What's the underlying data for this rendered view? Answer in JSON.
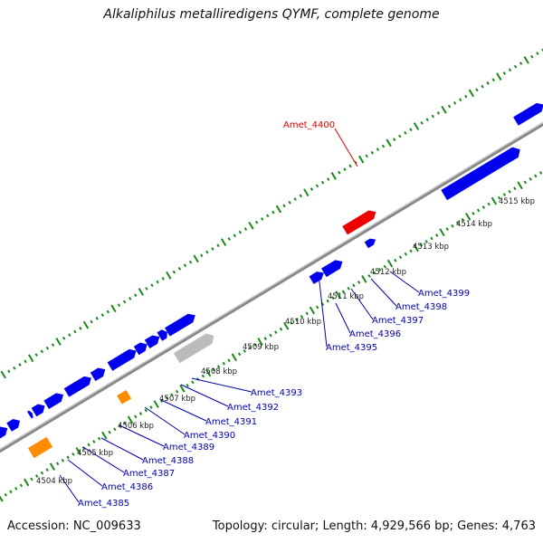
{
  "title": "Alkaliphilus metalliredigens QYMF, complete genome",
  "accession": "Accession: NC_009633",
  "summary": "Topology: circular; Length: 4,929,566 bp; Genes: 4,763",
  "colors": {
    "forward_gene": "#0000ee",
    "reverse_gene": "#0000ee",
    "highlight_gene": "#ee0000",
    "rna_gene": "#ff8c00",
    "pseudo_gene": "#bbbbbb",
    "backbone": "#888888",
    "ticks": "#1a8a1a",
    "label_highlight": "#dd0000",
    "label_normal": "#0000aa"
  },
  "highlighted_gene": "Amet_4400",
  "kbp_ticks": [
    "4504 kbp",
    "4505 kbp",
    "4506 kbp",
    "4507 kbp",
    "4508 kbp",
    "4509 kbp",
    "4510 kbp",
    "4511 kbp",
    "4512 kbp",
    "4513 kbp",
    "4514 kbp",
    "4515 kbp"
  ],
  "gene_labels": [
    "Amet_4385",
    "Amet_4386",
    "Amet_4387",
    "Amet_4388",
    "Amet_4389",
    "Amet_4390",
    "Amet_4391",
    "Amet_4392",
    "Amet_4393",
    "Amet_4395",
    "Amet_4396",
    "Amet_4397",
    "Amet_4398",
    "Amet_4399"
  ]
}
